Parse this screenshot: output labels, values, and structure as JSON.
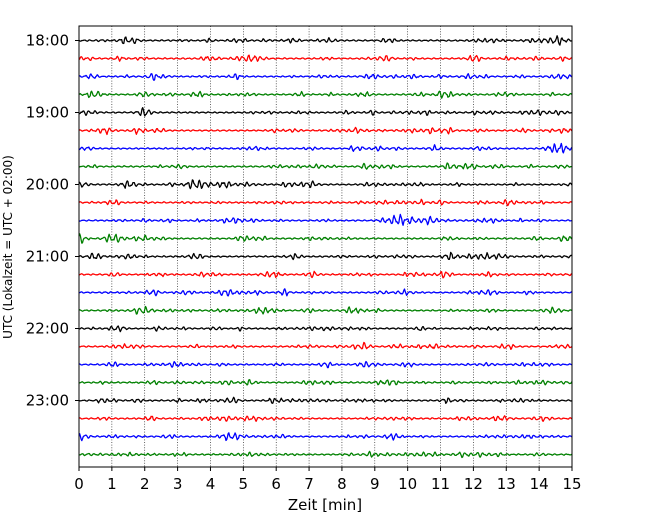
{
  "chart_data": {
    "type": "line",
    "title": "",
    "xlabel": "Zeit  [min]",
    "ylabel": "UTC (Lokalzeit = UTC + 02:00)",
    "xlim": [
      0,
      15
    ],
    "x_ticks": [
      "0",
      "1",
      "2",
      "3",
      "4",
      "5",
      "6",
      "7",
      "8",
      "9",
      "10",
      "11",
      "12",
      "13",
      "14",
      "15"
    ],
    "y_tick_labels": [
      "18:00",
      "19:00",
      "20:00",
      "21:00",
      "22:00",
      "23:00"
    ],
    "grid": "vertical dotted lines at each minute",
    "trace_colors": [
      "#000000",
      "#ff0000",
      "#0000ff",
      "#008000"
    ],
    "series": [
      {
        "start": "18:00",
        "color": "#000000",
        "events": [
          {
            "x": 7.6,
            "amp": 0.5
          },
          {
            "x": 14.6,
            "amp": 1.0
          }
        ]
      },
      {
        "start": "18:15",
        "color": "#ff0000",
        "events": [
          {
            "x": 12.0,
            "amp": 0.6
          }
        ]
      },
      {
        "start": "18:30",
        "color": "#0000ff",
        "events": [
          {
            "x": 8.9,
            "amp": 0.7
          }
        ]
      },
      {
        "start": "18:45",
        "color": "#008000",
        "events": [
          {
            "x": 3.6,
            "amp": 0.6
          },
          {
            "x": 11.2,
            "amp": 0.6
          }
        ]
      },
      {
        "start": "19:00",
        "color": "#000000",
        "events": [
          {
            "x": 2.0,
            "amp": 0.7
          },
          {
            "x": 14.6,
            "amp": 0.5
          }
        ]
      },
      {
        "start": "19:15",
        "color": "#ff0000",
        "events": [
          {
            "x": 0.8,
            "amp": 0.8
          }
        ]
      },
      {
        "start": "19:30",
        "color": "#0000ff",
        "events": [
          {
            "x": 14.4,
            "amp": 0.6
          }
        ]
      },
      {
        "start": "19:45",
        "color": "#008000",
        "events": [
          {
            "x": 11.3,
            "amp": 0.6
          }
        ]
      },
      {
        "start": "20:00",
        "color": "#000000",
        "events": [
          {
            "x": 1.5,
            "amp": 1.0
          },
          {
            "x": 3.5,
            "amp": 0.7
          }
        ]
      },
      {
        "start": "20:15",
        "color": "#ff0000",
        "events": [
          {
            "x": 1.0,
            "amp": 0.5
          },
          {
            "x": 13.1,
            "amp": 0.6
          }
        ]
      },
      {
        "start": "20:30",
        "color": "#0000ff",
        "events": [
          {
            "x": 9.7,
            "amp": 1.3
          },
          {
            "x": 10.6,
            "amp": 0.9
          },
          {
            "x": 4.8,
            "amp": 0.6
          }
        ]
      },
      {
        "start": "20:45",
        "color": "#008000",
        "events": [
          {
            "x": 1.0,
            "amp": 1.1
          },
          {
            "x": 5.0,
            "amp": 0.7
          }
        ]
      },
      {
        "start": "21:00",
        "color": "#000000",
        "events": [
          {
            "x": 1.5,
            "amp": 0.6
          },
          {
            "x": 11.3,
            "amp": 0.7
          }
        ]
      },
      {
        "start": "21:15",
        "color": "#ff0000",
        "events": [
          {
            "x": 11.1,
            "amp": 0.8
          }
        ]
      },
      {
        "start": "21:30",
        "color": "#0000ff",
        "events": [
          {
            "x": 9.9,
            "amp": 0.7
          }
        ]
      },
      {
        "start": "21:45",
        "color": "#008000",
        "events": [
          {
            "x": 8.3,
            "amp": 0.5
          }
        ]
      },
      {
        "start": "22:00",
        "color": "#000000",
        "events": [
          {
            "x": 1.1,
            "amp": 0.5
          }
        ]
      },
      {
        "start": "22:15",
        "color": "#ff0000",
        "events": []
      },
      {
        "start": "22:30",
        "color": "#0000ff",
        "events": [
          {
            "x": 10.0,
            "amp": 0.5
          }
        ]
      },
      {
        "start": "22:45",
        "color": "#008000",
        "events": [
          {
            "x": 4.5,
            "amp": 0.5
          }
        ]
      },
      {
        "start": "23:00",
        "color": "#000000",
        "events": [
          {
            "x": 6.0,
            "amp": 0.6
          }
        ]
      },
      {
        "start": "23:15",
        "color": "#ff0000",
        "events": [
          {
            "x": 5.3,
            "amp": 0.5
          }
        ]
      },
      {
        "start": "23:30",
        "color": "#0000ff",
        "events": [
          {
            "x": 4.4,
            "amp": 0.5
          }
        ]
      },
      {
        "start": "23:45",
        "color": "#008000",
        "events": [
          {
            "x": 8.9,
            "amp": 0.6
          }
        ]
      }
    ]
  }
}
